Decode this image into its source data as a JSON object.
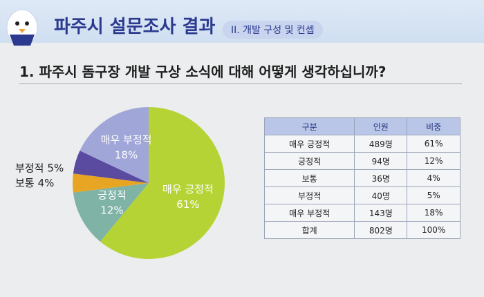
{
  "header": {
    "title": "파주시 설문조사 결과",
    "section": "II. 개발 구성 및 컨셉"
  },
  "question": "1. 파주시 돔구장 개발 구상 소식에 대해 어떻게 생각하십니까?",
  "chart_data": {
    "type": "pie",
    "categories": [
      "매우 긍정적",
      "긍정적",
      "보통",
      "부정적",
      "매우 부정적"
    ],
    "values": [
      61,
      12,
      4,
      5,
      18
    ],
    "value_labels": [
      "61%",
      "12%",
      "4%",
      "5%",
      "18%"
    ],
    "colors": [
      "#b5d334",
      "#7fb3a6",
      "#e8a523",
      "#5a4aa0",
      "#a0a6d8"
    ]
  },
  "table": {
    "columns": [
      "구분",
      "인원",
      "비중"
    ],
    "rows": [
      [
        "매우 긍정적",
        "489명",
        "61%"
      ],
      [
        "긍정적",
        "94명",
        "12%"
      ],
      [
        "보통",
        "36명",
        "4%"
      ],
      [
        "부정적",
        "40명",
        "5%"
      ],
      [
        "매우 부정적",
        "143명",
        "18%"
      ],
      [
        "합계",
        "802명",
        "100%"
      ]
    ]
  }
}
